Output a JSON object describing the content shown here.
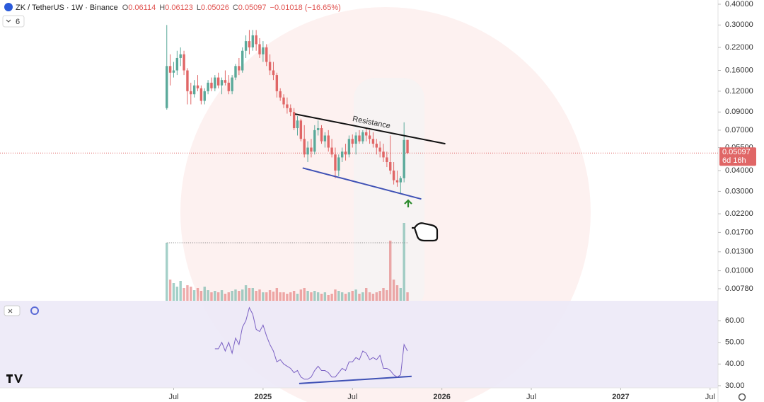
{
  "header": {
    "symbol": "ZK / TetherUS · 1W · Binance",
    "ohlc_labels": [
      "O",
      "H",
      "L",
      "C"
    ],
    "change": "−0.01018 (−16.65%)",
    "indicators": 6
  },
  "chart_data": {
    "type": "candlestick",
    "open": [
      0.095,
      0.17,
      0.155,
      0.16,
      0.19,
      0.2,
      0.16,
      0.12,
      0.115,
      0.13,
      0.125,
      0.105,
      0.12,
      0.135,
      0.125,
      0.145,
      0.13,
      0.14,
      0.135,
      0.12,
      0.145,
      0.17,
      0.16,
      0.21,
      0.24,
      0.22,
      0.26,
      0.23,
      0.2,
      0.22,
      0.18,
      0.16,
      0.15,
      0.12,
      0.11,
      0.1,
      0.095,
      0.09,
      0.072,
      0.08,
      0.062,
      0.05,
      0.055,
      0.052,
      0.07,
      0.072,
      0.06,
      0.065,
      0.055,
      0.05,
      0.04,
      0.048,
      0.052,
      0.05,
      0.062,
      0.058,
      0.065,
      0.06,
      0.068,
      0.065,
      0.062,
      0.058,
      0.055,
      0.052,
      0.048,
      0.045,
      0.04,
      0.035,
      0.034,
      0.036,
      0.06114
    ],
    "high": [
      0.3,
      0.2,
      0.18,
      0.21,
      0.22,
      0.21,
      0.165,
      0.135,
      0.14,
      0.15,
      0.13,
      0.125,
      0.14,
      0.145,
      0.15,
      0.155,
      0.145,
      0.16,
      0.15,
      0.15,
      0.175,
      0.19,
      0.22,
      0.26,
      0.28,
      0.28,
      0.28,
      0.25,
      0.24,
      0.23,
      0.2,
      0.18,
      0.155,
      0.125,
      0.115,
      0.11,
      0.1,
      0.095,
      0.085,
      0.082,
      0.075,
      0.06,
      0.062,
      0.075,
      0.08,
      0.075,
      0.068,
      0.07,
      0.062,
      0.055,
      0.05,
      0.055,
      0.058,
      0.065,
      0.066,
      0.068,
      0.07,
      0.07,
      0.072,
      0.07,
      0.068,
      0.062,
      0.06,
      0.058,
      0.052,
      0.065,
      0.045,
      0.04,
      0.037,
      0.078,
      0.06123
    ],
    "low": [
      0.093,
      0.13,
      0.145,
      0.15,
      0.17,
      0.15,
      0.1,
      0.1,
      0.11,
      0.12,
      0.1,
      0.1,
      0.115,
      0.12,
      0.12,
      0.125,
      0.115,
      0.13,
      0.115,
      0.115,
      0.14,
      0.15,
      0.155,
      0.19,
      0.2,
      0.21,
      0.21,
      0.19,
      0.18,
      0.17,
      0.15,
      0.14,
      0.11,
      0.105,
      0.095,
      0.088,
      0.085,
      0.07,
      0.065,
      0.06,
      0.048,
      0.045,
      0.048,
      0.05,
      0.065,
      0.058,
      0.055,
      0.052,
      0.048,
      0.036,
      0.037,
      0.045,
      0.046,
      0.048,
      0.055,
      0.05,
      0.058,
      0.058,
      0.06,
      0.058,
      0.055,
      0.05,
      0.048,
      0.045,
      0.042,
      0.038,
      0.033,
      0.032,
      0.029,
      0.034,
      0.05026
    ],
    "close": [
      0.17,
      0.155,
      0.16,
      0.19,
      0.2,
      0.16,
      0.12,
      0.115,
      0.13,
      0.125,
      0.105,
      0.12,
      0.135,
      0.125,
      0.145,
      0.13,
      0.14,
      0.135,
      0.12,
      0.145,
      0.17,
      0.16,
      0.21,
      0.24,
      0.22,
      0.26,
      0.23,
      0.2,
      0.22,
      0.18,
      0.16,
      0.15,
      0.12,
      0.11,
      0.1,
      0.095,
      0.09,
      0.072,
      0.08,
      0.062,
      0.05,
      0.055,
      0.052,
      0.07,
      0.072,
      0.06,
      0.065,
      0.055,
      0.05,
      0.04,
      0.048,
      0.052,
      0.05,
      0.062,
      0.058,
      0.065,
      0.06,
      0.068,
      0.065,
      0.062,
      0.058,
      0.055,
      0.052,
      0.048,
      0.045,
      0.04,
      0.035,
      0.034,
      0.036,
      0.06114,
      0.05097
    ],
    "volume": [
      82,
      30,
      25,
      20,
      28,
      18,
      22,
      20,
      15,
      18,
      14,
      20,
      15,
      12,
      14,
      12,
      15,
      10,
      12,
      14,
      16,
      14,
      16,
      22,
      18,
      18,
      14,
      16,
      12,
      12,
      15,
      13,
      18,
      12,
      12,
      10,
      12,
      14,
      10,
      16,
      18,
      14,
      12,
      14,
      12,
      10,
      12,
      8,
      10,
      16,
      14,
      12,
      10,
      12,
      14,
      16,
      10,
      12,
      18,
      12,
      10,
      12,
      14,
      18,
      15,
      85,
      30,
      22,
      18,
      110,
      12
    ],
    "up_color": "#5aa99a",
    "down_color": "#e06666",
    "log_scale": true,
    "ylim": [
      0.0066,
      0.424
    ],
    "yticks": [
      {
        "value": 0.4,
        "label": "0.40000"
      },
      {
        "value": 0.3,
        "label": "0.30000"
      },
      {
        "value": 0.22,
        "label": "0.22000"
      },
      {
        "value": 0.16,
        "label": "0.16000"
      },
      {
        "value": 0.12,
        "label": "0.12000"
      },
      {
        "value": 0.09,
        "label": "0.09000"
      },
      {
        "value": 0.07,
        "label": "0.07000"
      },
      {
        "value": 0.055,
        "label": "0.05500"
      },
      {
        "value": 0.04,
        "label": "0.04000"
      },
      {
        "value": 0.03,
        "label": "0.03000"
      },
      {
        "value": 0.022,
        "label": "0.02200"
      },
      {
        "value": 0.017,
        "label": "0.01700"
      },
      {
        "value": 0.013,
        "label": "0.01300"
      },
      {
        "value": 0.01,
        "label": "0.01000"
      },
      {
        "value": 0.0078,
        "label": "0.00780"
      }
    ],
    "xlim": [
      -48.5,
      160.3
    ],
    "xticks": [
      {
        "value": 2,
        "label": "Jul"
      },
      {
        "value": 28,
        "label": "2025"
      },
      {
        "value": 54,
        "label": "Jul"
      },
      {
        "value": 80,
        "label": "2026"
      },
      {
        "value": 106,
        "label": "Jul"
      },
      {
        "value": 132,
        "label": "2027"
      },
      {
        "value": 158,
        "label": "Jul"
      }
    ],
    "countdown": "6d 16h",
    "trendlines": [
      {
        "pane": "price",
        "x": [
          37.3,
          81
        ],
        "y": [
          0.0875,
          0.058
        ],
        "color": "#111111",
        "label": "Resistance"
      },
      {
        "pane": "price",
        "x": [
          39.5,
          74
        ],
        "y": [
          0.0415,
          0.027
        ],
        "color": "#3f51b5"
      },
      {
        "pane": "rsi",
        "x": [
          38.5,
          71.2
        ],
        "y": [
          31,
          34.3
        ],
        "color": "#3f51b5"
      }
    ],
    "rsi": {
      "color": "#7b61c4",
      "ylim": [
        29,
        69.2
      ],
      "yticks": [
        {
          "value": 60,
          "label": "60.00"
        },
        {
          "value": 50,
          "label": "50.00"
        },
        {
          "value": 40,
          "label": "40.00"
        },
        {
          "value": 30,
          "label": "30.00"
        }
      ],
      "values": [
        null,
        null,
        null,
        null,
        null,
        null,
        null,
        null,
        null,
        null,
        null,
        null,
        null,
        null,
        47,
        47,
        50,
        46,
        50,
        45,
        52,
        49,
        57,
        60,
        66,
        63,
        56,
        55,
        58,
        53,
        49,
        46,
        41,
        42,
        40,
        39,
        38,
        36,
        37,
        34,
        33,
        33,
        34,
        37,
        39,
        37,
        37,
        36,
        34,
        34,
        36,
        38,
        37,
        41,
        41,
        43,
        42,
        46,
        45,
        42,
        43,
        42,
        44,
        38,
        38,
        37,
        35,
        34,
        35,
        49,
        46
      ]
    }
  }
}
